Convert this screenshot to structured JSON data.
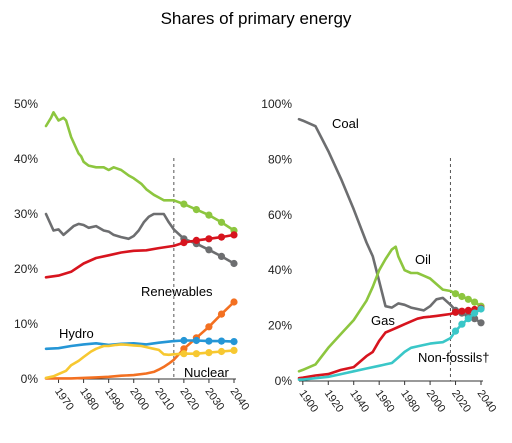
{
  "title": "Shares of primary energy",
  "colors": {
    "coal": "#6d6e70",
    "oil": "#8dc63f",
    "gas": "#d7141e",
    "renewables": "#f37021",
    "hydro": "#2596d6",
    "nuclear": "#f7c831",
    "nonfossils": "#3ac7c8",
    "projection_line": "#555555"
  },
  "chart_data": [
    {
      "type": "line",
      "xlim": [
        1965,
        2040
      ],
      "ylim": [
        0,
        50
      ],
      "projection_start": 2016,
      "yticks": [
        "0%",
        "10%",
        "20%",
        "30%",
        "40%",
        "50%"
      ],
      "ytick_values": [
        0,
        10,
        20,
        30,
        40,
        50
      ],
      "xticks": [
        "1970",
        "1980",
        "1990",
        "2000",
        "2010",
        "2020",
        "2030",
        "2040"
      ],
      "xtick_values": [
        1970,
        1980,
        1990,
        2000,
        2010,
        2020,
        2030,
        2040
      ],
      "annotations": [
        "Renewables",
        "Hydro",
        "Nuclear"
      ],
      "series": [
        {
          "name": "Oil",
          "color_key": "oil",
          "x": [
            1965,
            1967,
            1968,
            1970,
            1972,
            1973,
            1975,
            1978,
            1979,
            1980,
            1982,
            1985,
            1988,
            1990,
            1992,
            1995,
            1998,
            2000,
            2003,
            2005,
            2008,
            2010,
            2012,
            2014,
            2016
          ],
          "y": [
            46.0,
            47.5,
            48.5,
            47.0,
            47.5,
            47.0,
            44.0,
            41.0,
            40.5,
            39.5,
            38.8,
            38.5,
            38.5,
            38.0,
            38.5,
            38.0,
            37.0,
            36.5,
            35.5,
            34.5,
            33.5,
            33.0,
            32.5,
            32.5,
            32.5
          ],
          "proj_x": [
            2020,
            2025,
            2030,
            2035,
            2040
          ],
          "proj_y": [
            31.8,
            30.8,
            29.8,
            28.5,
            27.0
          ]
        },
        {
          "name": "Coal",
          "color_key": "coal",
          "x": [
            1965,
            1967,
            1968,
            1970,
            1972,
            1974,
            1976,
            1978,
            1980,
            1982,
            1985,
            1988,
            1990,
            1992,
            1995,
            1998,
            2000,
            2002,
            2004,
            2006,
            2008,
            2010,
            2012,
            2014,
            2016
          ],
          "y": [
            30.0,
            28.0,
            27.0,
            27.2,
            26.2,
            27.0,
            27.8,
            28.2,
            28.0,
            27.5,
            27.8,
            27.0,
            26.8,
            26.2,
            25.8,
            25.5,
            26.0,
            27.0,
            28.5,
            29.5,
            30.0,
            30.0,
            30.0,
            28.5,
            27.2
          ],
          "proj_x": [
            2020,
            2025,
            2030,
            2035,
            2040
          ],
          "proj_y": [
            25.5,
            24.6,
            23.5,
            22.3,
            21.0
          ]
        },
        {
          "name": "Gas",
          "color_key": "gas",
          "x": [
            1965,
            1970,
            1975,
            1980,
            1985,
            1990,
            1995,
            2000,
            2005,
            2010,
            2016
          ],
          "y": [
            18.5,
            18.8,
            19.5,
            21.0,
            22.0,
            22.5,
            23.0,
            23.3,
            23.4,
            23.8,
            24.2
          ],
          "proj_x": [
            2020,
            2025,
            2030,
            2035,
            2040
          ],
          "proj_y": [
            24.8,
            25.2,
            25.5,
            25.8,
            26.2
          ]
        },
        {
          "name": "Renewables",
          "color_key": "renewables",
          "x": [
            1965,
            1970,
            1975,
            1980,
            1985,
            1990,
            1995,
            2000,
            2005,
            2008,
            2010,
            2012,
            2014,
            2016
          ],
          "y": [
            0.1,
            0.1,
            0.1,
            0.2,
            0.3,
            0.4,
            0.6,
            0.7,
            1.0,
            1.3,
            1.7,
            2.2,
            2.8,
            3.5
          ],
          "proj_x": [
            2020,
            2025,
            2030,
            2035,
            2040
          ],
          "proj_y": [
            5.5,
            7.5,
            9.5,
            11.8,
            14.0
          ]
        },
        {
          "name": "Hydro",
          "color_key": "hydro",
          "x": [
            1965,
            1970,
            1975,
            1980,
            1985,
            1990,
            1995,
            2000,
            2005,
            2010,
            2016
          ],
          "y": [
            5.5,
            5.6,
            6.0,
            6.3,
            6.5,
            6.2,
            6.4,
            6.5,
            6.3,
            6.6,
            6.9
          ],
          "proj_x": [
            2020,
            2025,
            2030,
            2035,
            2040
          ],
          "proj_y": [
            7.0,
            7.0,
            6.9,
            6.9,
            6.8
          ]
        },
        {
          "name": "Nuclear",
          "color_key": "nuclear",
          "x": [
            1965,
            1968,
            1970,
            1973,
            1975,
            1978,
            1980,
            1983,
            1985,
            1988,
            1990,
            1993,
            1995,
            1998,
            2000,
            2003,
            2005,
            2008,
            2010,
            2012,
            2014,
            2016
          ],
          "y": [
            0.2,
            0.5,
            0.9,
            1.5,
            2.5,
            3.3,
            4.0,
            5.0,
            5.5,
            6.0,
            6.0,
            6.2,
            6.3,
            6.2,
            6.1,
            6.0,
            5.8,
            5.5,
            5.3,
            4.5,
            4.4,
            4.5
          ],
          "proj_x": [
            2020,
            2025,
            2030,
            2035,
            2040
          ],
          "proj_y": [
            4.6,
            4.6,
            4.8,
            5.0,
            5.2
          ]
        }
      ]
    },
    {
      "type": "line",
      "xlim": [
        1897,
        2040
      ],
      "ylim": [
        0,
        100
      ],
      "projection_start": 2016,
      "yticks": [
        "0%",
        "20%",
        "40%",
        "60%",
        "80%",
        "100%"
      ],
      "ytick_values": [
        0,
        20,
        40,
        60,
        80,
        100
      ],
      "xticks": [
        "1900",
        "1920",
        "1940",
        "1960",
        "1980",
        "2000",
        "2020",
        "2040"
      ],
      "xtick_values": [
        1900,
        1920,
        1940,
        1960,
        1980,
        2000,
        2020,
        2040
      ],
      "annotations": [
        "Coal",
        "Oil",
        "Gas",
        "Non-fossils†"
      ],
      "series": [
        {
          "name": "Coal",
          "color_key": "coal",
          "x": [
            1897,
            1900,
            1910,
            1920,
            1930,
            1940,
            1950,
            1955,
            1960,
            1965,
            1970,
            1975,
            1980,
            1985,
            1990,
            1995,
            2000,
            2005,
            2010,
            2016
          ],
          "y": [
            94.5,
            94.0,
            92.0,
            83.0,
            73.0,
            62.0,
            50.0,
            45.0,
            36.0,
            27.0,
            26.5,
            28.0,
            27.5,
            26.5,
            26.0,
            25.5,
            27.0,
            29.5,
            30.0,
            27.5
          ],
          "proj_x": [
            2020,
            2025,
            2030,
            2035,
            2040
          ],
          "proj_y": [
            25.5,
            24.5,
            23.5,
            22.5,
            21.0
          ]
        },
        {
          "name": "Oil",
          "color_key": "oil",
          "x": [
            1897,
            1900,
            1910,
            1920,
            1930,
            1940,
            1950,
            1955,
            1960,
            1965,
            1970,
            1973,
            1975,
            1980,
            1985,
            1990,
            1995,
            2000,
            2005,
            2010,
            2016
          ],
          "y": [
            3.5,
            4.0,
            6.0,
            12.0,
            17.0,
            22.0,
            29.0,
            34.0,
            40.0,
            44.0,
            47.5,
            48.5,
            45.0,
            40.0,
            39.0,
            39.0,
            38.0,
            37.0,
            35.0,
            33.0,
            32.5
          ],
          "proj_x": [
            2020,
            2025,
            2030,
            2035,
            2040
          ],
          "proj_y": [
            31.5,
            30.5,
            29.5,
            28.5,
            27.0
          ]
        },
        {
          "name": "Gas",
          "color_key": "gas",
          "x": [
            1897,
            1900,
            1910,
            1920,
            1930,
            1940,
            1950,
            1955,
            1960,
            1965,
            1970,
            1975,
            1980,
            1985,
            1990,
            1995,
            2000,
            2005,
            2010,
            2016
          ],
          "y": [
            1.0,
            1.2,
            2.0,
            2.5,
            4.0,
            5.0,
            9.0,
            10.5,
            14.5,
            17.5,
            18.5,
            19.5,
            20.5,
            21.5,
            22.5,
            23.0,
            23.2,
            23.5,
            23.8,
            24.2
          ],
          "proj_x": [
            2020,
            2025,
            2030,
            2035,
            2040
          ],
          "proj_y": [
            24.8,
            25.2,
            25.5,
            25.8,
            26.2
          ]
        },
        {
          "name": "Non-fossils†",
          "color_key": "nonfossils",
          "x": [
            1897,
            1900,
            1910,
            1920,
            1930,
            1940,
            1950,
            1960,
            1965,
            1970,
            1975,
            1980,
            1985,
            1990,
            1995,
            2000,
            2005,
            2010,
            2016
          ],
          "y": [
            0.5,
            0.5,
            1.0,
            1.5,
            2.5,
            3.5,
            4.5,
            5.5,
            6.0,
            6.5,
            8.5,
            10.5,
            12.0,
            12.5,
            13.0,
            13.5,
            13.8,
            14.0,
            15.5
          ],
          "proj_x": [
            2020,
            2025,
            2030,
            2035,
            2040
          ],
          "proj_y": [
            18.0,
            20.5,
            22.5,
            24.5,
            26.0
          ]
        }
      ]
    }
  ]
}
